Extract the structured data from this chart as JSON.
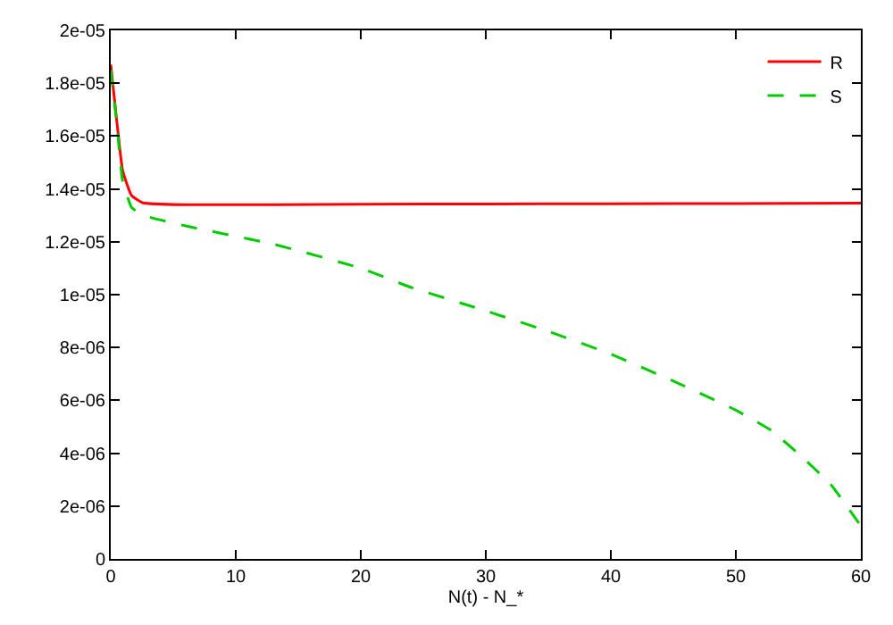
{
  "chart_data": {
    "type": "line",
    "xlabel": "N(t) - N_*",
    "xlim": [
      0,
      60
    ],
    "xticks": [
      0,
      10,
      20,
      30,
      40,
      50,
      60
    ],
    "ylim": [
      0,
      2e-05
    ],
    "yticks": [
      0,
      {
        "value": 2e-06,
        "label": "2e-06"
      },
      {
        "value": 4e-06,
        "label": "4e-06"
      },
      {
        "value": 6e-06,
        "label": "6e-06"
      },
      {
        "value": 8e-06,
        "label": "8e-06"
      },
      {
        "value": 1e-05,
        "label": "1e-05"
      },
      {
        "value": 1.2e-05,
        "label": "1.2e-05"
      },
      {
        "value": 1.4e-05,
        "label": "1.4e-05"
      },
      {
        "value": 1.6e-05,
        "label": "1.6e-05"
      },
      {
        "value": 1.8e-05,
        "label": "1.8e-05"
      },
      {
        "value": 2e-05,
        "label": "2e-05"
      }
    ],
    "grid": false,
    "legend": "top right",
    "marker": "none",
    "series": [
      {
        "name": "R",
        "color": "#ff0000",
        "line_style": "solid",
        "x": [
          0,
          0.5,
          0.95,
          1.67,
          2.6,
          6,
          20,
          30,
          40,
          50,
          60
        ],
        "values": [
          1.87e-05,
          1.65e-05,
          1.47e-05,
          1.375e-05,
          1.347e-05,
          1.34e-05,
          1.342e-05,
          1.343e-05,
          1.344e-05,
          1.345e-05,
          1.346e-05
        ]
      },
      {
        "name": "S",
        "color": "#00cc00",
        "line_style": "dashed",
        "x": [
          0,
          0.5,
          0.95,
          1.67,
          2.6,
          6,
          13.1,
          20,
          24,
          29.5,
          34.7,
          40,
          45.1,
          50,
          52.8,
          55.2,
          57.6,
          60
        ],
        "values": [
          1.85e-05,
          1.64e-05,
          1.43e-05,
          1.33e-05,
          1.3e-05,
          1.26e-05,
          1.19e-05,
          1.1e-05,
          1.028e-05,
          9.46e-06,
          8.66e-06,
          7.75e-06,
          6.71e-06,
          5.63e-06,
          4.87e-06,
          3.9e-06,
          2.81e-06,
          1.25e-06
        ]
      }
    ]
  }
}
